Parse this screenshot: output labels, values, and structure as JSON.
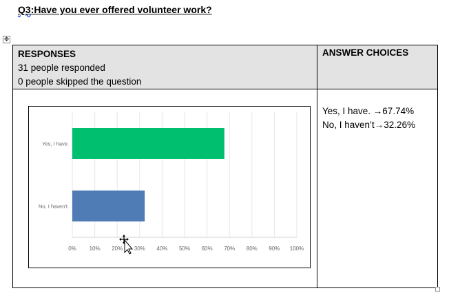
{
  "question": {
    "prefix": "Q3",
    "text": ":Have you ever offered volunteer work?"
  },
  "table": {
    "responses_header": "RESPONSES",
    "responded": "31 people responded",
    "skipped": "0 people skipped the question",
    "answer_choices_header": "ANSWER CHOICES",
    "answers": [
      "Yes, I have. →67.74%",
      "No, I haven’t→32.26%"
    ]
  },
  "chart_data": {
    "type": "bar",
    "orientation": "horizontal",
    "categories": [
      "Yes, I have.",
      "No, I haven't."
    ],
    "values": [
      67.74,
      32.26
    ],
    "colors": [
      "#00bf6f",
      "#507cb6"
    ],
    "xlim": [
      0,
      100
    ],
    "xticks": [
      "0%",
      "10%",
      "20%",
      "30%",
      "40%",
      "50%",
      "60%",
      "70%",
      "80%",
      "90%",
      "100%"
    ],
    "grid": true,
    "title": "",
    "xlabel": "",
    "ylabel": ""
  }
}
